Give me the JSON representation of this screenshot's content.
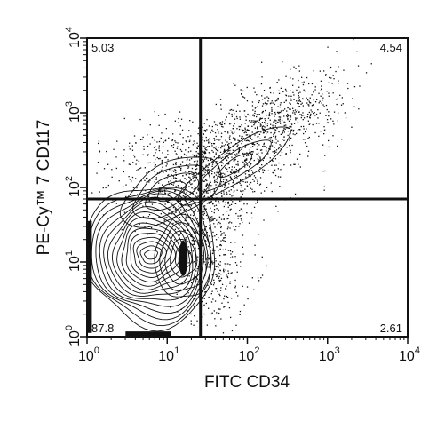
{
  "chart_data": {
    "type": "scatter",
    "subtype": "flow-cytometry-contour-quadrant",
    "xlabel": "FITC CD34",
    "ylabel": "PE-Cy™ 7 CD117",
    "x_scale": "log",
    "y_scale": "log",
    "xlim": [
      1,
      10000
    ],
    "ylim": [
      1,
      10000
    ],
    "x_ticks": [
      {
        "value": 1,
        "base": "10",
        "exp": "0"
      },
      {
        "value": 10,
        "base": "10",
        "exp": "1"
      },
      {
        "value": 100,
        "base": "10",
        "exp": "2"
      },
      {
        "value": 1000,
        "base": "10",
        "exp": "3"
      },
      {
        "value": 10000,
        "base": "10",
        "exp": "4"
      }
    ],
    "y_ticks": [
      {
        "value": 1,
        "base": "10",
        "exp": "0"
      },
      {
        "value": 10,
        "base": "10",
        "exp": "1"
      },
      {
        "value": 100,
        "base": "10",
        "exp": "2"
      },
      {
        "value": 1000,
        "base": "10",
        "exp": "3"
      },
      {
        "value": 10000,
        "base": "10",
        "exp": "4"
      }
    ],
    "gates": {
      "x": 26,
      "y": 70
    },
    "quadrants": [
      {
        "position": "upper-left",
        "value": "5.03"
      },
      {
        "position": "upper-right",
        "value": "4.54"
      },
      {
        "position": "lower-left",
        "value": "87.8"
      },
      {
        "position": "lower-right",
        "value": "2.61"
      }
    ],
    "grid": false,
    "legend": "none"
  },
  "colors": {
    "ink": "#111111",
    "background": "#ffffff"
  }
}
